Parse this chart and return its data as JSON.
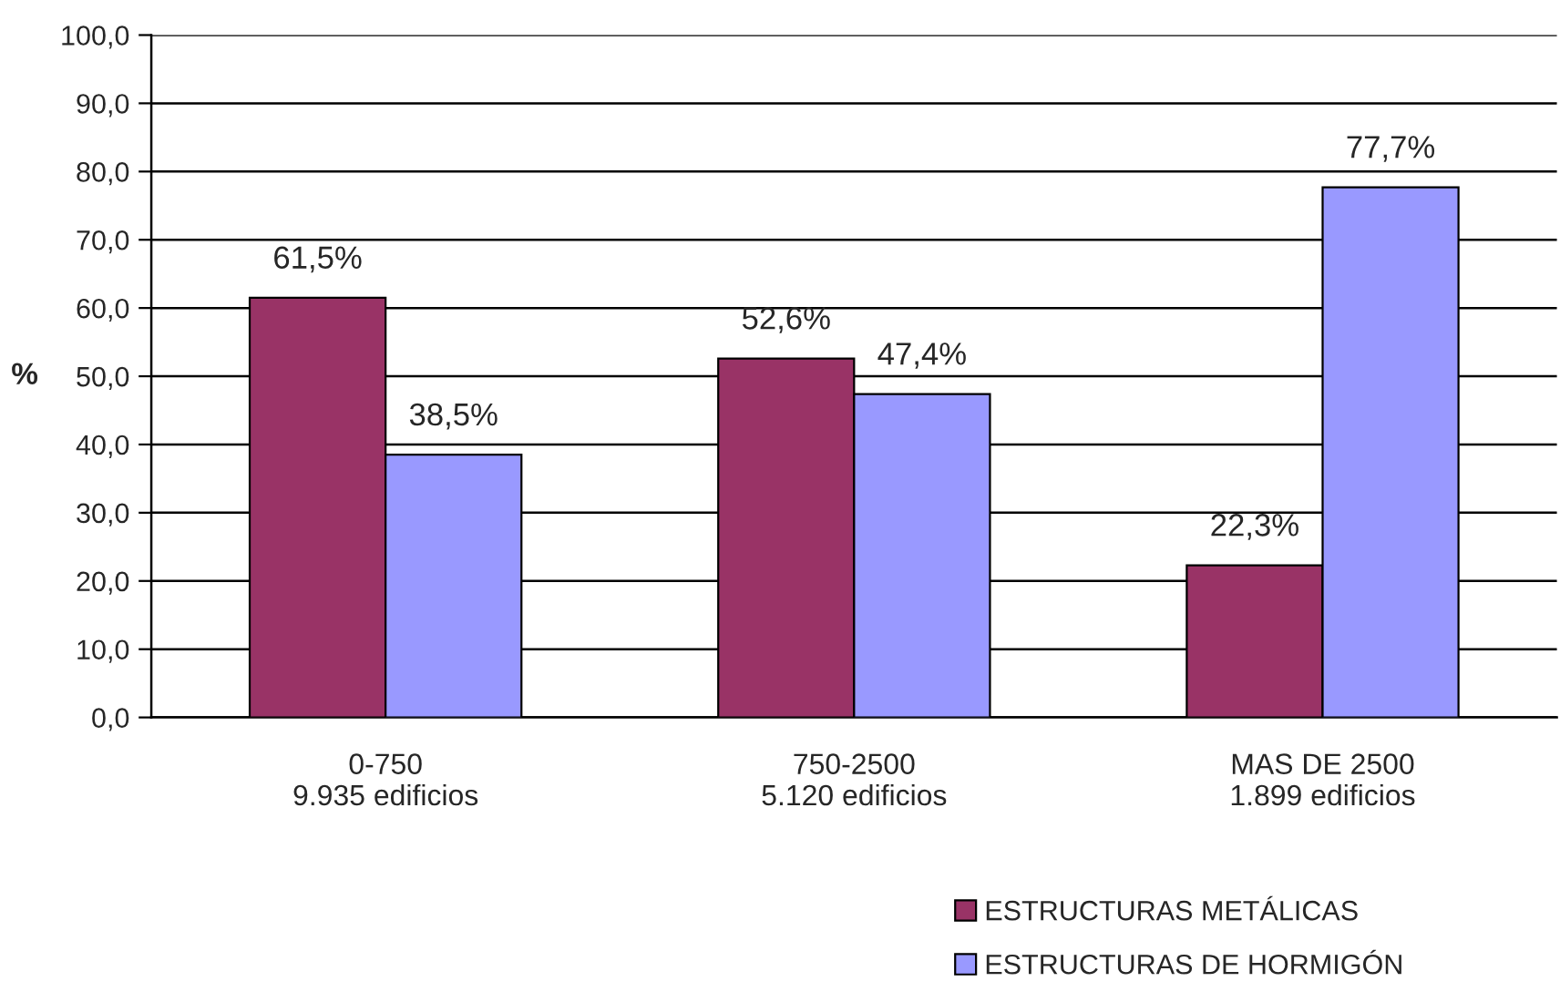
{
  "chart_data": {
    "type": "bar",
    "categories": [
      "0-750\n9.935 edificios",
      "750-2500\n5.120 edificios",
      "MAS DE 2500\n1.899 edificios"
    ],
    "ylabel": "%",
    "series": [
      {
        "name": "ESTRUCTURAS METÁLICAS",
        "color": "#993366",
        "values": [
          61.5,
          52.6,
          22.3
        ],
        "value_labels": [
          "61,5%",
          "52,6%",
          "22,3%"
        ]
      },
      {
        "name": "ESTRUCTURAS DE HORMIGÓN",
        "color": "#9999ff",
        "values": [
          38.5,
          47.4,
          77.7
        ],
        "value_labels": [
          "38,5%",
          "47,4%",
          "77,7%"
        ]
      }
    ],
    "ylim": [
      0,
      100
    ],
    "yticks": [
      {
        "value": 0,
        "label": "0,0"
      },
      {
        "value": 10,
        "label": "10,0"
      },
      {
        "value": 20,
        "label": "20,0"
      },
      {
        "value": 30,
        "label": "30,0"
      },
      {
        "value": 40,
        "label": "40,0"
      },
      {
        "value": 50,
        "label": "50,0"
      },
      {
        "value": 60,
        "label": "60,0"
      },
      {
        "value": 70,
        "label": "70,0"
      },
      {
        "value": 80,
        "label": "80,0"
      },
      {
        "value": 90,
        "label": "90,0"
      },
      {
        "value": 100,
        "label": "100,0"
      }
    ],
    "grid": "y",
    "legend": "bottom right"
  }
}
